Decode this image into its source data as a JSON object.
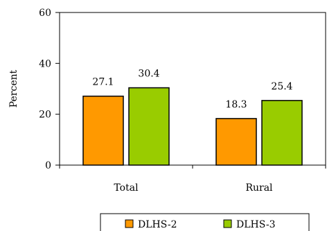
{
  "chart_data": {
    "type": "bar",
    "title": "",
    "xlabel": "",
    "ylabel": "Percent",
    "ylim": [
      0,
      60
    ],
    "yticks": [
      0,
      20,
      40,
      60
    ],
    "categories": [
      "Total",
      "Rural"
    ],
    "series": [
      {
        "name": "DLHS-2",
        "values": [
          27.1,
          18.3
        ],
        "color": "#ff9900",
        "labels": [
          "27.1",
          "18.3"
        ]
      },
      {
        "name": "DLHS-3",
        "values": [
          30.4,
          25.4
        ],
        "color": "#99cc00",
        "labels": [
          "30.4",
          "25.4"
        ]
      }
    ],
    "grid": false,
    "legend": "bottom-center"
  }
}
